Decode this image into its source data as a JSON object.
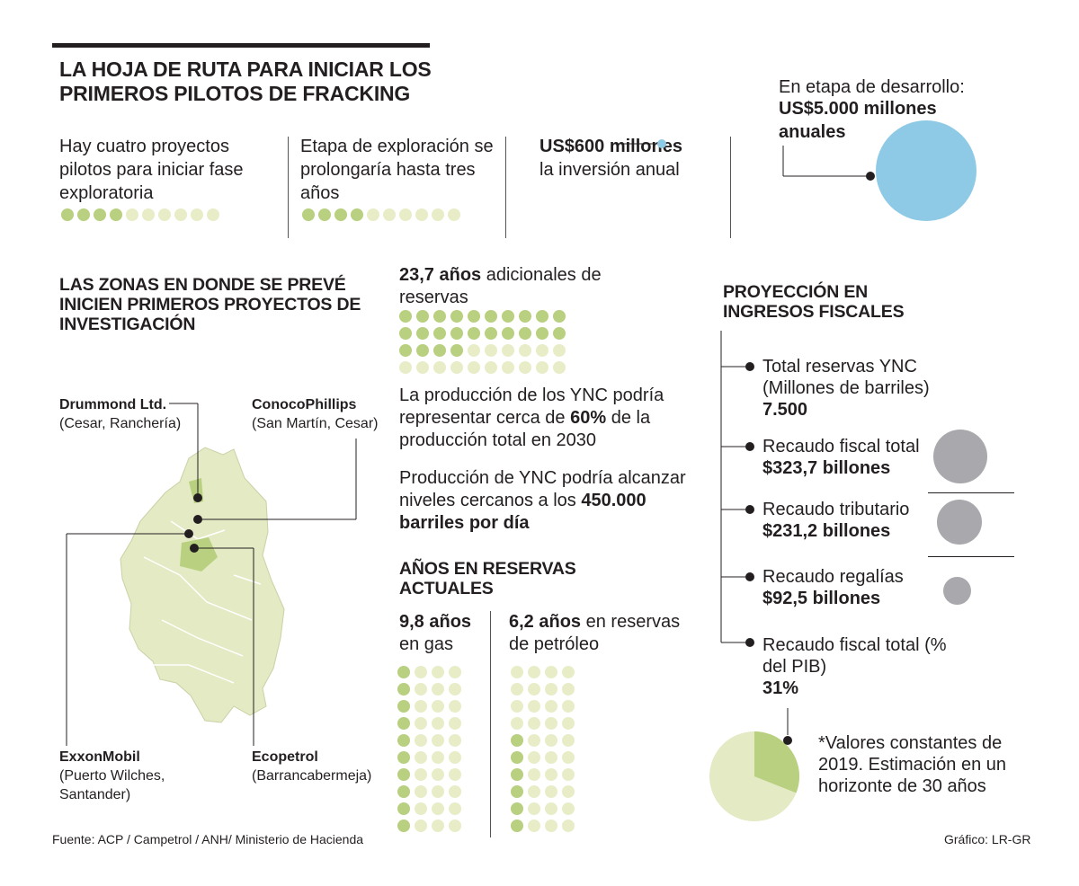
{
  "title": "LA HOJA DE RUTA PARA INICIAR LOS PRIMEROS PILOTOS DE FRACKING",
  "stats": {
    "projects": {
      "text": "Hay cuatro proyectos pilotos para iniciar fase exploratoria",
      "count": 4,
      "total": 10
    },
    "exploration": {
      "text": "Etapa de exploración se prolongaría hasta tres años",
      "count": 4,
      "total": 10
    },
    "investment": {
      "bold": "US$600 millones",
      "rest": "la inversión anual"
    },
    "development": {
      "line1": "En etapa de desarrollo:",
      "bold": "US$5.000 millones anuales"
    }
  },
  "zones": {
    "header": "LAS ZONAS EN DONDE SE PREVÉ INICIEN PRIMEROS PROYECTOS DE INVESTIGACIÓN",
    "companies": [
      {
        "name": "Drummond Ltd.",
        "place": "(Cesar, Ranchería)"
      },
      {
        "name": "ConocoPhillips",
        "place": "(San Martín, Cesar)"
      },
      {
        "name": "ExxonMobil",
        "place": "(Puerto Wilches, Santander)"
      },
      {
        "name": "Ecopetrol",
        "place": "(Barrancabermeja)"
      }
    ]
  },
  "reserves": {
    "bold": "23,7 años",
    "rest": "adicionales de reservas",
    "filled": 24,
    "total": 40,
    "production_pre": "La producción de los YNC podría representar cerca de",
    "production_bold": "60%",
    "production_post": "de la producción total en 2030",
    "barrels_pre": "Producción de YNC podría alcanzar niveles cercanos a los",
    "barrels_bold": "450.000 barriles por día"
  },
  "current": {
    "header": "AÑOS EN RESERVAS ACTUALES",
    "gas": {
      "bold": "9,8 años",
      "rest": "en gas",
      "filled": 10,
      "total": 40
    },
    "oil": {
      "bold": "6,2 años",
      "rest": "en reservas de petróleo",
      "filled": 6,
      "total": 40
    }
  },
  "fiscal": {
    "header": "PROYECCIÓN EN INGRESOS FISCALES",
    "items": [
      {
        "label": "Total reservas YNC (Millones de barriles)",
        "value": "7.500"
      },
      {
        "label": "Recaudo fiscal total",
        "value": "$323,7 billones"
      },
      {
        "label": "Recaudo tributario",
        "value": "$231,2 billones"
      },
      {
        "label": "Recaudo regalías",
        "value": "$92,5 billones"
      },
      {
        "label": "Recaudo fiscal total (% del PIB)",
        "value": "31%"
      }
    ],
    "pie_share": 0.31,
    "note": "*Valores constantes de 2019. Estimación en un horizonte de 30 años"
  },
  "footer": {
    "source": "Fuente: ACP / Campetrol / ANH/ Ministerio de Hacienda",
    "credit": "Gráfico: LR-GR"
  },
  "colors": {
    "green": "#b8d07f",
    "light_green": "#e8edc8",
    "map": "#e3eac4",
    "blue": "#8ecae6",
    "gray": "#a9a9ad"
  }
}
